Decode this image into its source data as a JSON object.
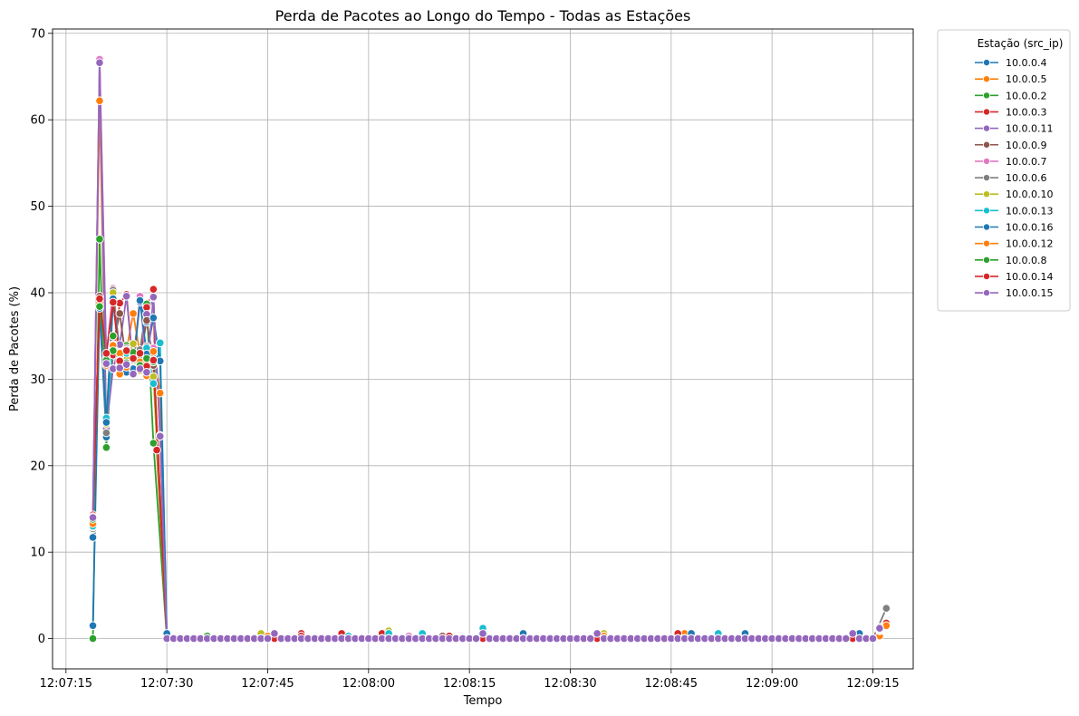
{
  "chart_data": {
    "type": "line",
    "title": "Perda de Pacotes ao Longo do Tempo - Todas as Estações",
    "xlabel": "Tempo",
    "ylabel": "Perda de Pacotes (%)",
    "x_ticks": [
      "12:07:15",
      "12:07:30",
      "12:07:45",
      "12:08:00",
      "12:08:15",
      "12:08:30",
      "12:08:45",
      "12:09:00",
      "12:09:15"
    ],
    "y_ticks": [
      0,
      10,
      20,
      30,
      40,
      50,
      60,
      70
    ],
    "xlim": [
      "12:07:13",
      "12:09:21"
    ],
    "ylim": [
      -3.5,
      70.5
    ],
    "grid": true,
    "legend": {
      "title": "Estação (src_ip)",
      "placement": "outside-top-right"
    },
    "series": [
      {
        "name": "10.0.0.4",
        "color": "#1f77b4",
        "points": [
          [
            "12:07:19",
            11.7
          ],
          [
            "12:07:20",
            38.3
          ],
          [
            "12:07:21",
            23.3
          ],
          [
            "12:07:22",
            39.2
          ],
          [
            "12:07:23",
            32.0
          ],
          [
            "12:07:24",
            30.8
          ],
          [
            "12:07:25",
            32.3
          ],
          [
            "12:07:26",
            38.9
          ],
          [
            "12:07:27",
            36.6
          ],
          [
            "12:07:28",
            32.1
          ],
          [
            "12:07:30",
            0.5
          ],
          [
            "12:07:40",
            0
          ],
          [
            "12:08:00",
            0
          ],
          [
            "12:08:23",
            0.6
          ],
          [
            "12:08:40",
            0
          ],
          [
            "12:08:56",
            0.6
          ],
          [
            "12:09:12",
            0.6
          ],
          [
            "12:09:16",
            1.2
          ]
        ]
      },
      {
        "name": "10.0.0.5",
        "color": "#ff7f0e",
        "points": [
          [
            "12:07:19",
            14.0
          ],
          [
            "12:07:20",
            62.2
          ],
          [
            "12:07:21",
            24.0
          ],
          [
            "12:07:22",
            34.0
          ],
          [
            "12:07:23",
            30.6
          ],
          [
            "12:07:24",
            33.4
          ],
          [
            "12:07:25",
            37.6
          ],
          [
            "12:07:26",
            32.9
          ],
          [
            "12:07:27",
            30.4
          ],
          [
            "12:07:28",
            33.5
          ],
          [
            "12:07:29",
            28.4
          ],
          [
            "12:07:30",
            0
          ],
          [
            "12:07:44",
            0.6
          ],
          [
            "12:08:00",
            0
          ],
          [
            "12:08:47",
            0.6
          ],
          [
            "12:09:00",
            0
          ],
          [
            "12:09:16",
            0.3
          ]
        ]
      },
      {
        "name": "10.0.0.2",
        "color": "#2ca02c",
        "points": [
          [
            "12:07:19",
            0
          ],
          [
            "12:07:20",
            46.2
          ],
          [
            "12:07:21",
            22.1
          ],
          [
            "12:07:22",
            35.0
          ],
          [
            "12:07:23",
            32.4
          ],
          [
            "12:07:24",
            33.9
          ],
          [
            "12:07:25",
            31.6
          ],
          [
            "12:07:26",
            33.2
          ],
          [
            "12:07:27",
            38.7
          ],
          [
            "12:07:28",
            22.6
          ],
          [
            "12:07:30",
            0
          ],
          [
            "12:07:36",
            0.3
          ],
          [
            "12:08:00",
            0
          ],
          [
            "12:08:17",
            0.6
          ],
          [
            "12:08:40",
            0
          ],
          [
            "12:09:12",
            0
          ],
          [
            "12:09:16",
            1.0
          ]
        ]
      },
      {
        "name": "10.0.0.3",
        "color": "#d62728",
        "points": [
          [
            "12:07:19",
            14.3
          ],
          [
            "12:07:20",
            39.5
          ],
          [
            "12:07:21",
            25.0
          ],
          [
            "12:07:22",
            32.8
          ],
          [
            "12:07:23",
            38.8
          ],
          [
            "12:07:24",
            39.8
          ],
          [
            "12:07:25",
            31.4
          ],
          [
            "12:07:26",
            32.8
          ],
          [
            "12:07:27",
            38.3
          ],
          [
            "12:07:28",
            40.4
          ],
          [
            "12:07:28.5",
            21.8
          ],
          [
            "12:07:30",
            0
          ],
          [
            "12:07:50",
            0.6
          ],
          [
            "12:07:56",
            0.6
          ],
          [
            "12:08:02",
            0.6
          ],
          [
            "12:08:17",
            0
          ],
          [
            "12:08:46",
            0.6
          ],
          [
            "12:09:00",
            0
          ],
          [
            "12:09:17",
            1.8
          ]
        ]
      },
      {
        "name": "10.0.0.11",
        "color": "#9467bd",
        "points": [
          [
            "12:07:19",
            14.0
          ],
          [
            "12:07:20",
            66.8
          ],
          [
            "12:07:21",
            24.3
          ],
          [
            "12:07:22",
            31.2
          ],
          [
            "12:07:23",
            34.0
          ],
          [
            "12:07:24",
            39.6
          ],
          [
            "12:07:25",
            31.3
          ],
          [
            "12:07:26",
            33.0
          ],
          [
            "12:07:27",
            37.5
          ],
          [
            "12:07:28",
            39.4
          ],
          [
            "12:07:29",
            23.5
          ],
          [
            "12:07:30",
            0
          ],
          [
            "12:08:00",
            0
          ],
          [
            "12:08:34",
            0.6
          ],
          [
            "12:09:00",
            0
          ],
          [
            "12:09:12",
            0.6
          ],
          [
            "12:09:16",
            1.2
          ]
        ]
      },
      {
        "name": "10.0.0.9",
        "color": "#8c564b",
        "points": [
          [
            "12:07:19",
            13.1
          ],
          [
            "12:07:20",
            39.6
          ],
          [
            "12:07:21",
            31.9
          ],
          [
            "12:07:22",
            34.0
          ],
          [
            "12:07:23",
            37.6
          ],
          [
            "12:07:24",
            31.7
          ],
          [
            "12:07:25",
            33.7
          ],
          [
            "12:07:26",
            32.2
          ],
          [
            "12:07:27",
            36.8
          ],
          [
            "12:07:28",
            31.6
          ],
          [
            "12:07:30",
            0
          ],
          [
            "12:08:00",
            0
          ],
          [
            "12:08:11",
            0.3
          ],
          [
            "12:09:00",
            0
          ],
          [
            "12:09:16",
            1.3
          ]
        ]
      },
      {
        "name": "10.0.0.7",
        "color": "#e377c2",
        "points": [
          [
            "12:07:19",
            13.5
          ],
          [
            "12:07:20",
            67.0
          ],
          [
            "12:07:21",
            32.5
          ],
          [
            "12:07:22",
            40.5
          ],
          [
            "12:07:23",
            33.1
          ],
          [
            "12:07:24",
            32.4
          ],
          [
            "12:07:25",
            31.3
          ],
          [
            "12:07:26",
            39.6
          ],
          [
            "12:07:27",
            30.9
          ],
          [
            "12:07:28",
            33.6
          ],
          [
            "12:07:30",
            0
          ],
          [
            "12:08:00",
            0
          ],
          [
            "12:08:06",
            0.3
          ],
          [
            "12:09:00",
            0
          ],
          [
            "12:09:16",
            1.2
          ]
        ]
      },
      {
        "name": "10.0.0.6",
        "color": "#7f7f7f",
        "points": [
          [
            "12:07:19",
            12.7
          ],
          [
            "12:07:20",
            38.4
          ],
          [
            "12:07:21",
            23.8
          ],
          [
            "12:07:22",
            40.3
          ],
          [
            "12:07:23",
            32.9
          ],
          [
            "12:07:24",
            33.6
          ],
          [
            "12:07:25",
            31.0
          ],
          [
            "12:07:26",
            33.4
          ],
          [
            "12:07:27",
            33.8
          ],
          [
            "12:07:28",
            33.0
          ],
          [
            "12:07:30",
            0
          ],
          [
            "12:08:00",
            0
          ],
          [
            "12:09:00",
            0
          ],
          [
            "12:09:17",
            3.5
          ]
        ]
      },
      {
        "name": "10.0.0.10",
        "color": "#bcbd22",
        "points": [
          [
            "12:07:19",
            12.9
          ],
          [
            "12:07:20",
            39.1
          ],
          [
            "12:07:21",
            24.8
          ],
          [
            "12:07:22",
            40.0
          ],
          [
            "12:07:23",
            31.5
          ],
          [
            "12:07:24",
            32.6
          ],
          [
            "12:07:25",
            34.1
          ],
          [
            "12:07:26",
            31.0
          ],
          [
            "12:07:27",
            32.3
          ],
          [
            "12:07:28",
            30.3
          ],
          [
            "12:07:30",
            0
          ],
          [
            "12:07:44",
            0.6
          ],
          [
            "12:08:03",
            0.9
          ],
          [
            "12:08:35",
            0.6
          ],
          [
            "12:08:48",
            0.3
          ],
          [
            "12:09:00",
            0
          ],
          [
            "12:09:16",
            0.9
          ]
        ]
      },
      {
        "name": "10.0.0.13",
        "color": "#17becf",
        "points": [
          [
            "12:07:19",
            13.0
          ],
          [
            "12:07:20",
            38.6
          ],
          [
            "12:07:21",
            25.5
          ],
          [
            "12:07:22",
            33.5
          ],
          [
            "12:07:23",
            31.5
          ],
          [
            "12:07:24",
            33.0
          ],
          [
            "12:07:25",
            30.9
          ],
          [
            "12:07:26",
            31.9
          ],
          [
            "12:07:27",
            33.6
          ],
          [
            "12:07:28",
            29.5
          ],
          [
            "12:07:29",
            34.2
          ],
          [
            "12:07:30",
            0
          ],
          [
            "12:07:57",
            0.3
          ],
          [
            "12:08:03",
            0.6
          ],
          [
            "12:08:08",
            0.6
          ],
          [
            "12:08:17",
            1.2
          ],
          [
            "12:08:52",
            0.6
          ],
          [
            "12:09:00",
            0
          ],
          [
            "12:09:16",
            1.0
          ]
        ]
      },
      {
        "name": "10.0.0.16",
        "color": "#1f77b4",
        "points": [
          [
            "12:07:19",
            1.5
          ],
          [
            "12:07:20",
            38.2
          ],
          [
            "12:07:21",
            25.0
          ],
          [
            "12:07:22",
            39.3
          ],
          [
            "12:07:23",
            32.6
          ],
          [
            "12:07:24",
            33.4
          ],
          [
            "12:07:25",
            31.2
          ],
          [
            "12:07:26",
            39.1
          ],
          [
            "12:07:27",
            32.9
          ],
          [
            "12:07:28",
            37.1
          ],
          [
            "12:07:29",
            32.1
          ],
          [
            "12:07:30",
            0.6
          ],
          [
            "12:08:00",
            0
          ],
          [
            "12:08:48",
            0.6
          ],
          [
            "12:09:00",
            0
          ],
          [
            "12:09:13",
            0.6
          ],
          [
            "12:09:16",
            1.1
          ]
        ]
      },
      {
        "name": "10.0.0.12",
        "color": "#ff7f0e",
        "points": [
          [
            "12:07:19",
            13.3
          ],
          [
            "12:07:20",
            38.8
          ],
          [
            "12:07:21",
            31.6
          ],
          [
            "12:07:22",
            33.9
          ],
          [
            "12:07:23",
            33.0
          ],
          [
            "12:07:24",
            31.4
          ],
          [
            "12:07:25",
            32.8
          ],
          [
            "12:07:26",
            32.0
          ],
          [
            "12:07:27",
            31.9
          ],
          [
            "12:07:28",
            33.2
          ],
          [
            "12:07:30",
            0
          ],
          [
            "12:07:45",
            0.3
          ],
          [
            "12:08:00",
            0
          ],
          [
            "12:08:35",
            0.3
          ],
          [
            "12:09:00",
            0
          ],
          [
            "12:09:15",
            0
          ],
          [
            "12:09:17",
            1.5
          ]
        ]
      },
      {
        "name": "10.0.0.8",
        "color": "#2ca02c",
        "points": [
          [
            "12:07:19",
            13.8
          ],
          [
            "12:07:20",
            38.4
          ],
          [
            "12:07:21",
            32.2
          ],
          [
            "12:07:22",
            33.3
          ],
          [
            "12:07:23",
            32.2
          ],
          [
            "12:07:24",
            31.9
          ],
          [
            "12:07:25",
            33.1
          ],
          [
            "12:07:26",
            31.6
          ],
          [
            "12:07:27",
            32.4
          ],
          [
            "12:07:28",
            32.0
          ],
          [
            "12:07:30",
            0
          ],
          [
            "12:08:00",
            0
          ],
          [
            "12:08:30",
            0
          ],
          [
            "12:09:12",
            0.3
          ],
          [
            "12:09:16",
            1.2
          ]
        ]
      },
      {
        "name": "10.0.0.14",
        "color": "#d62728",
        "points": [
          [
            "12:07:19",
            14.1
          ],
          [
            "12:07:20",
            39.3
          ],
          [
            "12:07:21",
            33.0
          ],
          [
            "12:07:22",
            38.9
          ],
          [
            "12:07:23",
            32.1
          ],
          [
            "12:07:24",
            33.3
          ],
          [
            "12:07:25",
            32.4
          ],
          [
            "12:07:26",
            33.0
          ],
          [
            "12:07:27",
            31.5
          ],
          [
            "12:07:28",
            32.2
          ],
          [
            "12:07:30",
            0
          ],
          [
            "12:07:50",
            0.3
          ],
          [
            "12:08:00",
            0
          ],
          [
            "12:08:12",
            0.3
          ],
          [
            "12:09:00",
            0
          ],
          [
            "12:09:16",
            1.3
          ]
        ]
      },
      {
        "name": "10.0.0.15",
        "color": "#9467bd",
        "points": [
          [
            "12:07:19",
            14.0
          ],
          [
            "12:07:20",
            66.6
          ],
          [
            "12:07:21",
            31.8
          ],
          [
            "12:07:22",
            31.2
          ],
          [
            "12:07:23",
            31.3
          ],
          [
            "12:07:24",
            31.7
          ],
          [
            "12:07:25",
            30.6
          ],
          [
            "12:07:26",
            31.2
          ],
          [
            "12:07:27",
            30.8
          ],
          [
            "12:07:28",
            39.5
          ],
          [
            "12:07:29",
            23.4
          ],
          [
            "12:07:30",
            0
          ],
          [
            "12:07:46",
            0.6
          ],
          [
            "12:08:00",
            0
          ],
          [
            "12:08:17",
            0.6
          ],
          [
            "12:08:34",
            0.6
          ],
          [
            "12:09:00",
            0
          ],
          [
            "12:09:12",
            0.6
          ],
          [
            "12:09:16",
            1.2
          ]
        ]
      }
    ],
    "sampled_times": {
      "start": "12:07:30",
      "end": "12:09:15",
      "step_seconds": 1,
      "value": 0
    }
  }
}
